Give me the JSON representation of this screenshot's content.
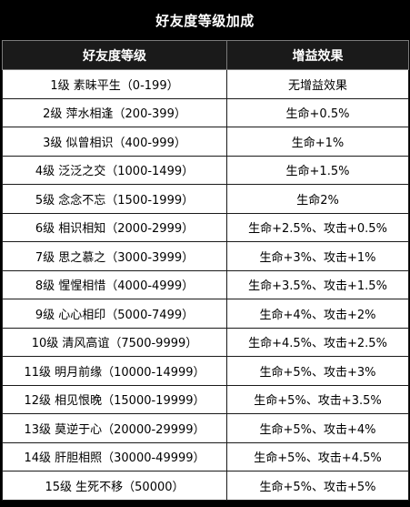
{
  "title": "好友度等级加成",
  "columns": {
    "level": "好友度等级",
    "bonus": "增益效果"
  },
  "rows": [
    {
      "level": "1级 素昧平生（0-199）",
      "bonus": "无增益效果"
    },
    {
      "level": "2级 萍水相逢（200-399）",
      "bonus": "生命+0.5%"
    },
    {
      "level": "3级 似曾相识（400-999）",
      "bonus": "生命+1%"
    },
    {
      "level": "4级 泛泛之交（1000-1499）",
      "bonus": "生命+1.5%"
    },
    {
      "level": "5级 念念不忘（1500-1999）",
      "bonus": "生命2%"
    },
    {
      "level": "6级 相识相知（2000-2999）",
      "bonus": "生命+2.5%、攻击+0.5%"
    },
    {
      "level": "7级 思之慕之（3000-3999）",
      "bonus": "生命+3%、攻击+1%"
    },
    {
      "level": "8级 惺惺相惜（4000-4999）",
      "bonus": "生命+3.5%、攻击+1.5%"
    },
    {
      "level": "9级 心心相印（5000-7499）",
      "bonus": "生命+4%、攻击+2%"
    },
    {
      "level": "10级 清风高谊（7500-9999）",
      "bonus": "生命+4.5%、攻击+2.5%"
    },
    {
      "level": "11级 明月前缘（10000-14999）",
      "bonus": "生命+5%、攻击+3%"
    },
    {
      "level": "12级 相见恨晚（15000-19999）",
      "bonus": "生命+5%、攻击+3.5%"
    },
    {
      "level": "13级 莫逆于心（20000-29999）",
      "bonus": "生命+5%、攻击+4%"
    },
    {
      "level": "14级 肝胆相照（30000-49999）",
      "bonus": "生命+5%、攻击+4.5%"
    },
    {
      "level": "15级 生死不移（50000）",
      "bonus": "生命+5%、攻击+5%"
    }
  ]
}
